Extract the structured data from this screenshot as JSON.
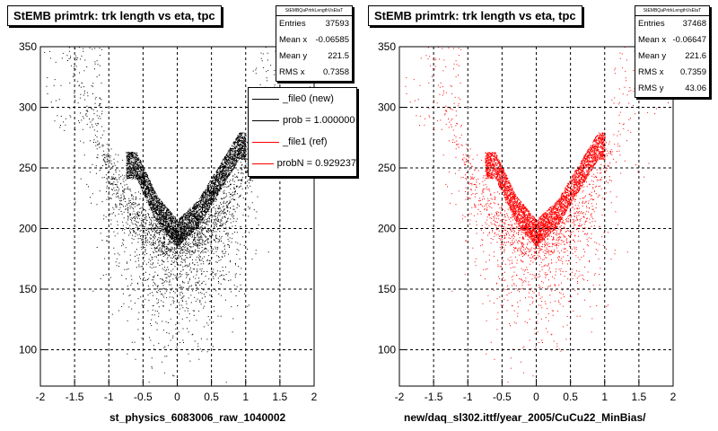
{
  "chart_data": [
    {
      "type": "scatter",
      "title": "StEMB primtrk: trk length vs eta, tpc",
      "xlabel": "st_physics_6083006_raw_1040002",
      "xlim": [
        -2,
        2
      ],
      "ylim": [
        70,
        350
      ],
      "x_ticks": [
        "-2",
        "-1.5",
        "-1",
        "-0.5",
        "0",
        "0.5",
        "1",
        "1.5",
        "2"
      ],
      "y_ticks": [
        "100",
        "150",
        "200",
        "250",
        "300",
        "350"
      ],
      "grid": true,
      "marker_color": "#000000",
      "stats_name": "StEMBQaPrtrkLengthVsEtaT",
      "stats": [
        {
          "label": "Entries",
          "value": "37593"
        },
        {
          "label": "Mean x",
          "value": "-0.06585"
        },
        {
          "label": "Mean y",
          "value": "221.5"
        },
        {
          "label": "RMS x",
          "value": "0.7358"
        }
      ],
      "legend": [
        {
          "label": "_file0 (new)",
          "color": "#000000"
        },
        {
          "label": "prob = 1.000000",
          "color": "#000000"
        },
        {
          "label": "_file1 (ref)",
          "color": "#ff0000"
        },
        {
          "label": "probN = 0.929237",
          "color": "#ff0000"
        }
      ],
      "dense_band": [
        [
          -0.6,
          252
        ],
        [
          -0.3,
          216
        ],
        [
          0.0,
          196
        ],
        [
          0.3,
          212
        ],
        [
          0.6,
          240
        ],
        [
          0.9,
          268
        ]
      ]
    },
    {
      "type": "scatter",
      "title": "StEMB primtrk: trk length vs eta, tpc",
      "xlabel": "new/daq_sl302.ittf/year_2005/CuCu22_MinBias/",
      "xlim": [
        -2,
        2
      ],
      "ylim": [
        70,
        350
      ],
      "x_ticks": [
        "-2",
        "-1.5",
        "-1",
        "-0.5",
        "0",
        "0.5",
        "1",
        "1.5",
        "2"
      ],
      "y_ticks": [
        "100",
        "150",
        "200",
        "250",
        "300",
        "350"
      ],
      "grid": true,
      "marker_color": "#ff0000",
      "stats_name": "StEMBQaPrtrkLengthVsEtaT",
      "stats": [
        {
          "label": "Entries",
          "value": "37468"
        },
        {
          "label": "Mean x",
          "value": "-0.06647"
        },
        {
          "label": "Mean y",
          "value": "221.6"
        },
        {
          "label": "RMS x",
          "value": "0.7359"
        },
        {
          "label": "RMS y",
          "value": "43.06"
        }
      ],
      "dense_band": [
        [
          -0.6,
          252
        ],
        [
          -0.3,
          216
        ],
        [
          0.0,
          196
        ],
        [
          0.3,
          212
        ],
        [
          0.6,
          240
        ],
        [
          0.9,
          268
        ]
      ]
    }
  ]
}
